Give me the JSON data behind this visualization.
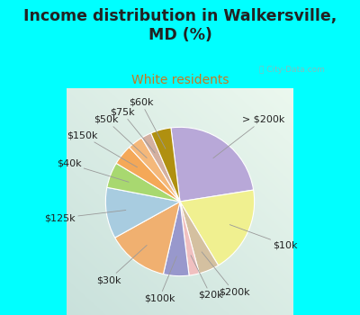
{
  "title": "Income distribution in Walkersville,\nMD (%)",
  "subtitle": "White residents",
  "bg_outer": "#00FFFF",
  "labels": [
    "> $200k",
    "$10k",
    "$200k",
    "$20k",
    "$100k",
    "$30k",
    "$125k",
    "$40k",
    "$150k",
    "$50k",
    "$75k",
    "$60k"
  ],
  "values": [
    22,
    17,
    4,
    2,
    5,
    12,
    10,
    5,
    4,
    3,
    2,
    4
  ],
  "colors": [
    "#b8a8d8",
    "#f0f090",
    "#d4c0a0",
    "#f0c0c0",
    "#9898cc",
    "#f0b070",
    "#a8cce0",
    "#a8d870",
    "#f4a858",
    "#f4b87a",
    "#d4b0a0",
    "#b09010"
  ],
  "startangle": 97,
  "title_color": "#222222",
  "subtitle_color": "#c87820",
  "watermark_color": "#aaaaaa",
  "label_color": "#222222",
  "label_fontsize": 8.0,
  "title_fontsize": 12.5,
  "subtitle_fontsize": 10
}
